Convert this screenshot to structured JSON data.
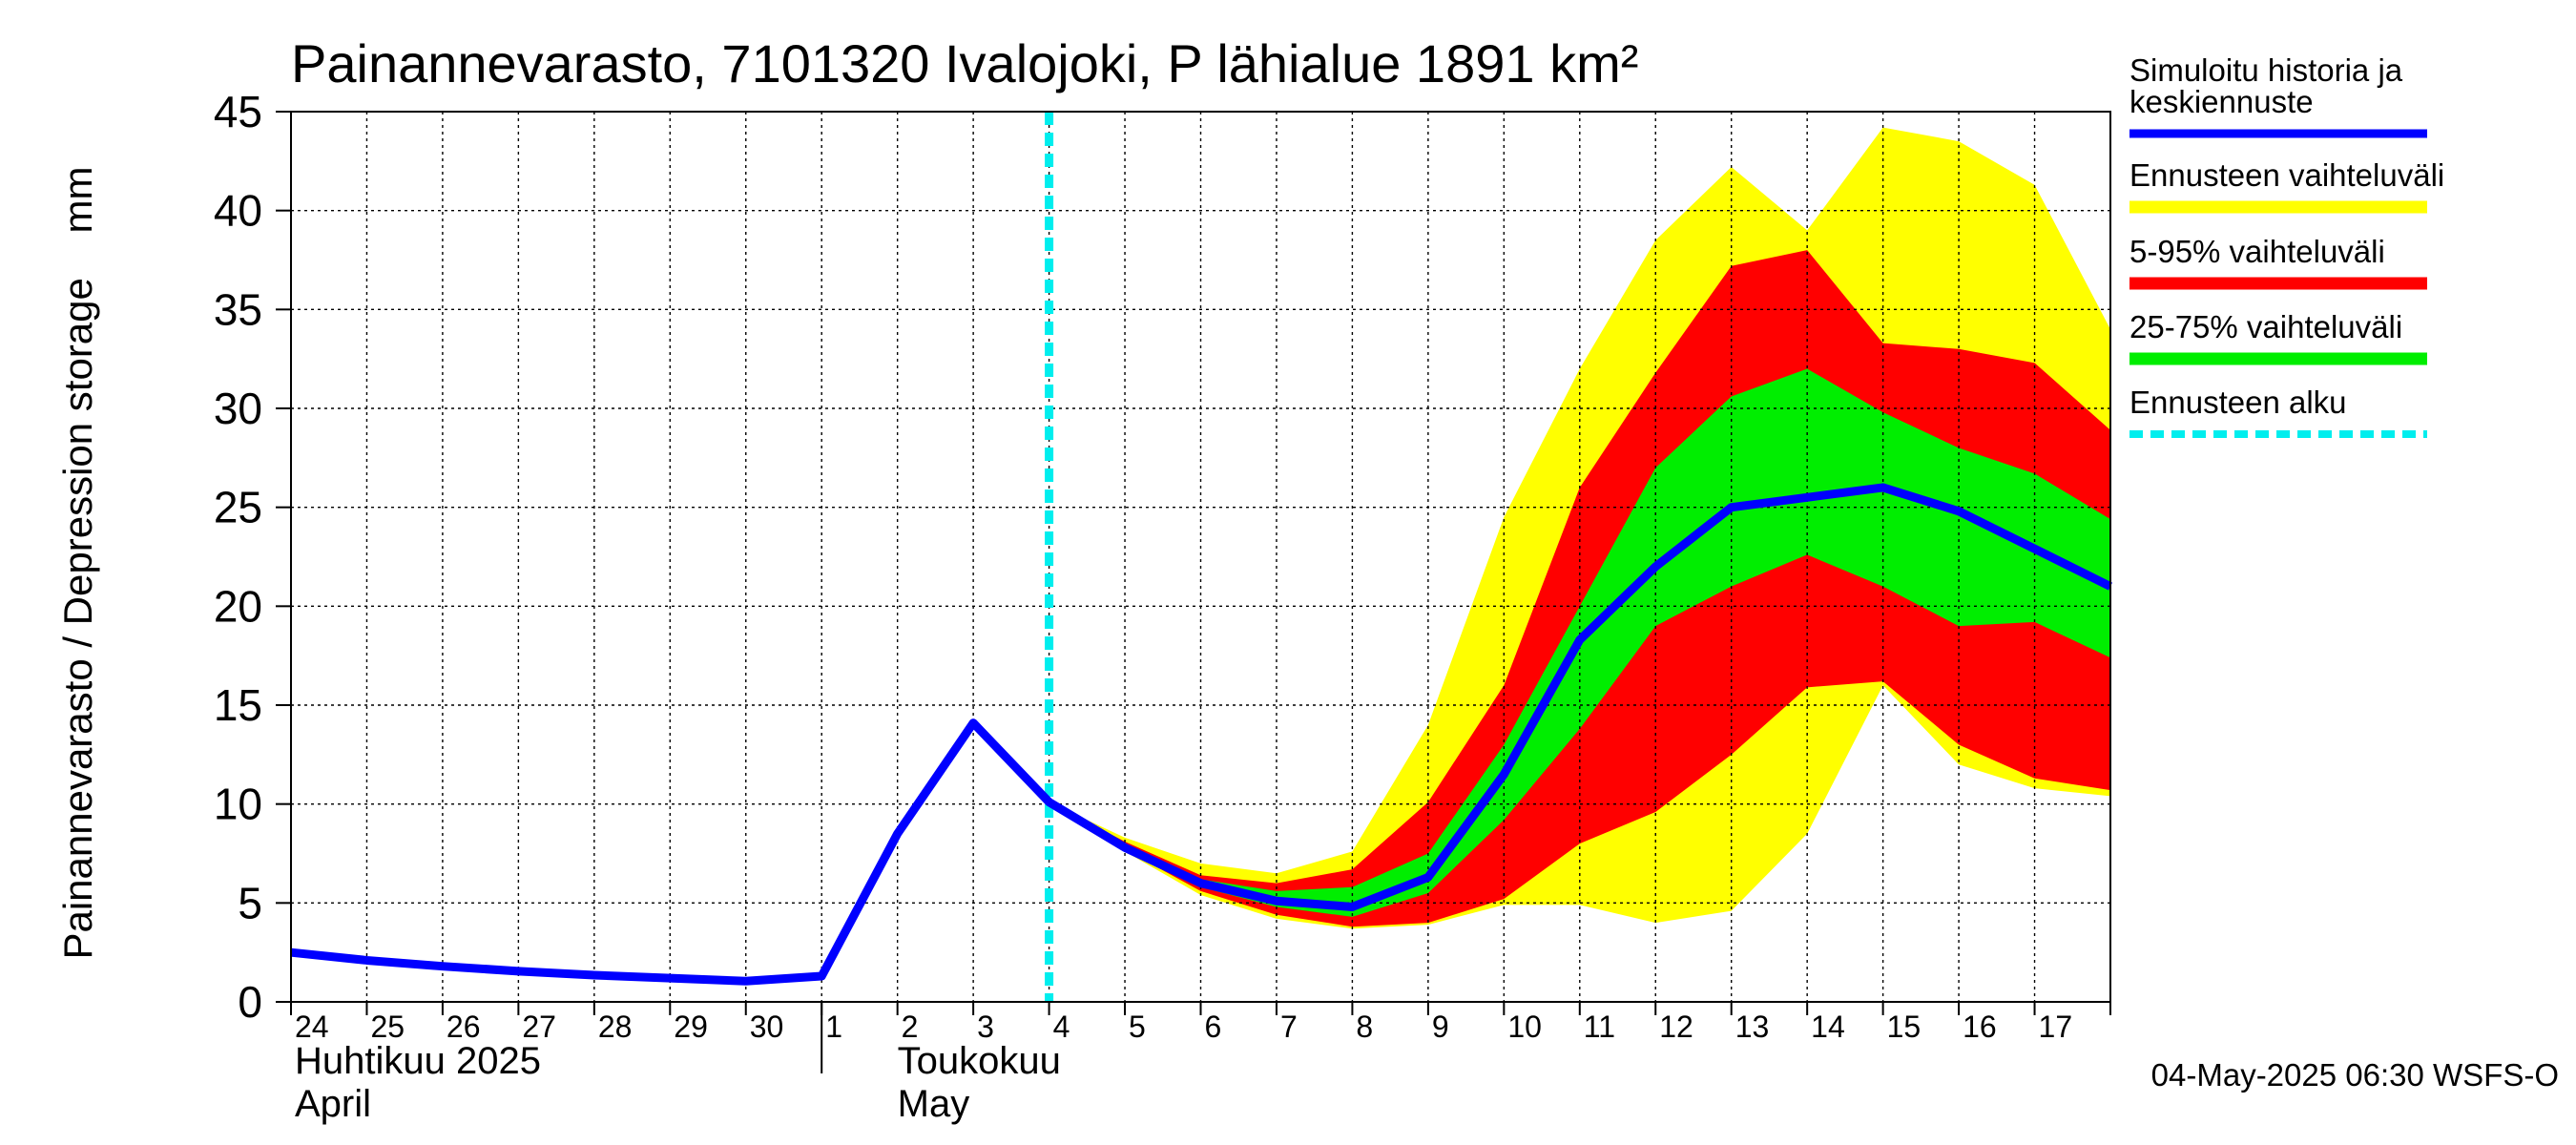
{
  "chart_data": {
    "type": "area",
    "title": "Painannevarasto, 7101320 Ivalojoki, P lähialue 1891 km²",
    "ylabel": "Painannevarasto / Depression storage    mm",
    "ylim": [
      0,
      45
    ],
    "yticks": [
      0,
      5,
      10,
      15,
      20,
      25,
      30,
      35,
      40,
      45
    ],
    "xlim": [
      0,
      24
    ],
    "x_tick_labels": [
      "24",
      "25",
      "26",
      "27",
      "28",
      "29",
      "30",
      "1",
      "2",
      "3",
      "4",
      "5",
      "6",
      "7",
      "8",
      "9",
      "10",
      "11",
      "12",
      "13",
      "14",
      "15",
      "16",
      "17"
    ],
    "month_labels": [
      {
        "x": 0,
        "line1": "Huhtikuu  2025",
        "line2": "April"
      },
      {
        "x": 8,
        "line1": "Toukokuu",
        "line2": "May"
      }
    ],
    "forecast_start_x": 10.0,
    "history": {
      "name": "Simuloitu historia ja keskiennuste",
      "x": [
        0,
        1,
        2,
        3,
        4,
        5,
        6,
        7,
        8,
        9,
        10
      ],
      "y": [
        2.5,
        2.1,
        1.8,
        1.55,
        1.35,
        1.2,
        1.05,
        1.3,
        8.5,
        14.1,
        10.1
      ]
    },
    "forecast_x": [
      10,
      11,
      12,
      13,
      14,
      15,
      16,
      17,
      18,
      19,
      20,
      21,
      22,
      23,
      24
    ],
    "median": [
      10.1,
      7.8,
      6.0,
      5.1,
      4.8,
      6.3,
      11.5,
      18.3,
      22.0,
      25.0,
      25.5,
      26.0,
      24.8,
      22.9,
      21.0
    ],
    "range_min": [
      10.1,
      7.6,
      5.4,
      4.2,
      3.7,
      3.9,
      4.9,
      4.9,
      4.0,
      4.6,
      8.5,
      16.0,
      12.0,
      10.8,
      10.4
    ],
    "range_max": [
      10.1,
      8.3,
      7.0,
      6.5,
      7.6,
      14.0,
      24.5,
      32.0,
      38.5,
      42.2,
      39.0,
      44.2,
      43.5,
      41.3,
      34.0
    ],
    "p5": [
      10.1,
      7.7,
      5.6,
      4.4,
      3.8,
      4.0,
      5.2,
      8.0,
      9.6,
      12.5,
      15.9,
      16.2,
      13.0,
      11.3,
      10.7
    ],
    "p95": [
      10.1,
      8.1,
      6.4,
      6.0,
      6.7,
      10.1,
      16.0,
      26.0,
      31.8,
      37.2,
      38.0,
      33.3,
      33.0,
      32.3,
      28.9
    ],
    "p25": [
      10.1,
      7.75,
      5.8,
      4.8,
      4.3,
      5.5,
      9.2,
      13.8,
      19.0,
      21.0,
      22.6,
      21.0,
      19.0,
      19.2,
      17.4
    ],
    "p75": [
      10.1,
      7.9,
      6.2,
      5.6,
      5.8,
      7.5,
      13.0,
      20.0,
      27.0,
      30.6,
      32.0,
      29.8,
      28.0,
      26.7,
      24.4
    ],
    "legend": [
      {
        "label": "Simuloitu historia ja keskiennuste",
        "color": "#0000ff",
        "style": "line"
      },
      {
        "label": "Ennusteen vaihteluväli",
        "color": "#ffff00",
        "style": "band"
      },
      {
        "label": "5-95% vaihteluväli",
        "color": "#ff0000",
        "style": "band"
      },
      {
        "label": "25-75% vaihteluväli",
        "color": "#00ee00",
        "style": "band"
      },
      {
        "label": "Ennusteen alku",
        "color": "#00eeee",
        "style": "dashed"
      }
    ],
    "colors": {
      "median": "#0000ff",
      "range": "#ffff00",
      "p5_95": "#ff0000",
      "p25_75": "#00ee00",
      "forecast_start": "#00eeee"
    }
  },
  "footer": "04-May-2025 06:30 WSFS-O"
}
